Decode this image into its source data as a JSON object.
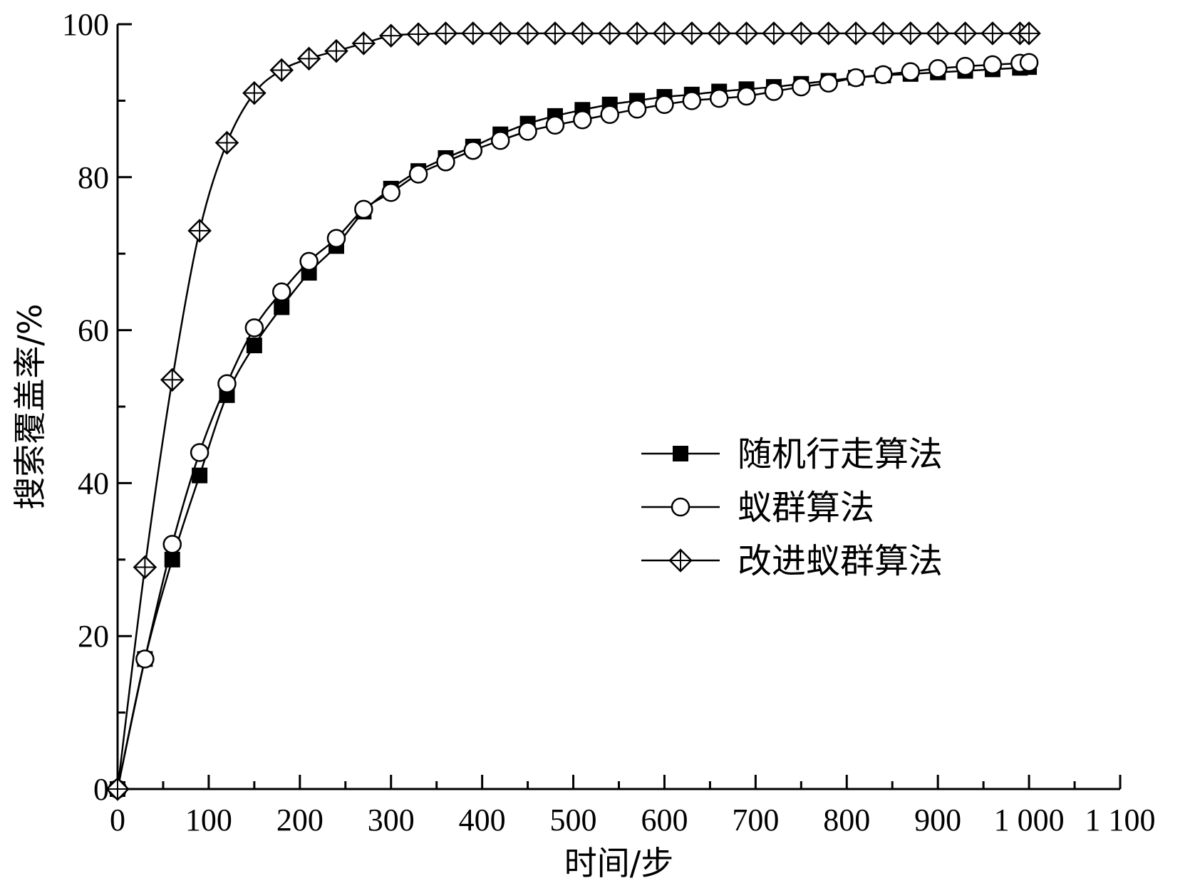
{
  "chart_data": {
    "type": "line",
    "xlabel": "时间/步",
    "ylabel": "搜索覆盖率/%",
    "xlim": [
      0,
      1100
    ],
    "ylim": [
      0,
      100
    ],
    "x_ticks": [
      0,
      100,
      200,
      300,
      400,
      500,
      600,
      700,
      800,
      900,
      1000,
      1100
    ],
    "x_tick_labels": [
      "0",
      "100",
      "200",
      "300",
      "400",
      "500",
      "600",
      "700",
      "800",
      "900",
      "1 000",
      "1 100"
    ],
    "y_ticks": [
      0,
      20,
      40,
      60,
      80,
      100
    ],
    "y_tick_labels": [
      "0",
      "20",
      "40",
      "60",
      "80",
      "100"
    ],
    "grid": false,
    "legend_position": "right-center",
    "series": [
      {
        "name": "随机行走算法",
        "marker": "filled-square",
        "color": "#000000",
        "x": [
          0,
          30,
          60,
          90,
          120,
          150,
          180,
          210,
          240,
          270,
          300,
          330,
          360,
          390,
          420,
          450,
          480,
          510,
          540,
          570,
          600,
          630,
          660,
          690,
          720,
          750,
          780,
          810,
          840,
          870,
          900,
          930,
          960,
          990,
          1000
        ],
        "values": [
          0,
          17,
          30,
          41,
          51.5,
          58,
          63,
          67.5,
          71,
          75.5,
          78.5,
          80.8,
          82.5,
          84,
          85.6,
          87,
          88,
          88.8,
          89.5,
          90,
          90.5,
          90.8,
          91.2,
          91.5,
          91.8,
          92.2,
          92.6,
          93,
          93.3,
          93.5,
          93.7,
          93.9,
          94.1,
          94.3,
          94.4
        ]
      },
      {
        "name": "蚁群算法",
        "marker": "open-circle",
        "color": "#000000",
        "x": [
          0,
          30,
          60,
          90,
          120,
          150,
          180,
          210,
          240,
          270,
          300,
          330,
          360,
          390,
          420,
          450,
          480,
          510,
          540,
          570,
          600,
          630,
          660,
          690,
          720,
          750,
          780,
          810,
          840,
          870,
          900,
          930,
          960,
          990,
          1000
        ],
        "values": [
          0,
          17,
          32,
          44,
          53,
          60.3,
          65,
          69,
          72,
          75.8,
          78,
          80.4,
          82,
          83.5,
          84.8,
          86,
          86.8,
          87.5,
          88.2,
          88.9,
          89.5,
          90,
          90.3,
          90.6,
          91.2,
          91.8,
          92.3,
          93,
          93.4,
          93.8,
          94.2,
          94.5,
          94.7,
          94.9,
          95
        ]
      },
      {
        "name": "改进蚁群算法",
        "marker": "open-diamond-cross",
        "color": "#000000",
        "x": [
          0,
          30,
          60,
          90,
          120,
          150,
          180,
          210,
          240,
          270,
          300,
          330,
          360,
          390,
          420,
          450,
          480,
          510,
          540,
          570,
          600,
          630,
          660,
          690,
          720,
          750,
          780,
          810,
          840,
          870,
          900,
          930,
          960,
          990,
          1000
        ],
        "values": [
          0,
          29,
          53.5,
          73,
          84.5,
          91,
          94,
          95.5,
          96.5,
          97.5,
          98.5,
          98.7,
          98.8,
          98.8,
          98.8,
          98.8,
          98.8,
          98.8,
          98.8,
          98.8,
          98.8,
          98.8,
          98.8,
          98.8,
          98.8,
          98.8,
          98.8,
          98.8,
          98.8,
          98.8,
          98.8,
          98.8,
          98.8,
          98.8,
          98.8
        ]
      }
    ]
  }
}
